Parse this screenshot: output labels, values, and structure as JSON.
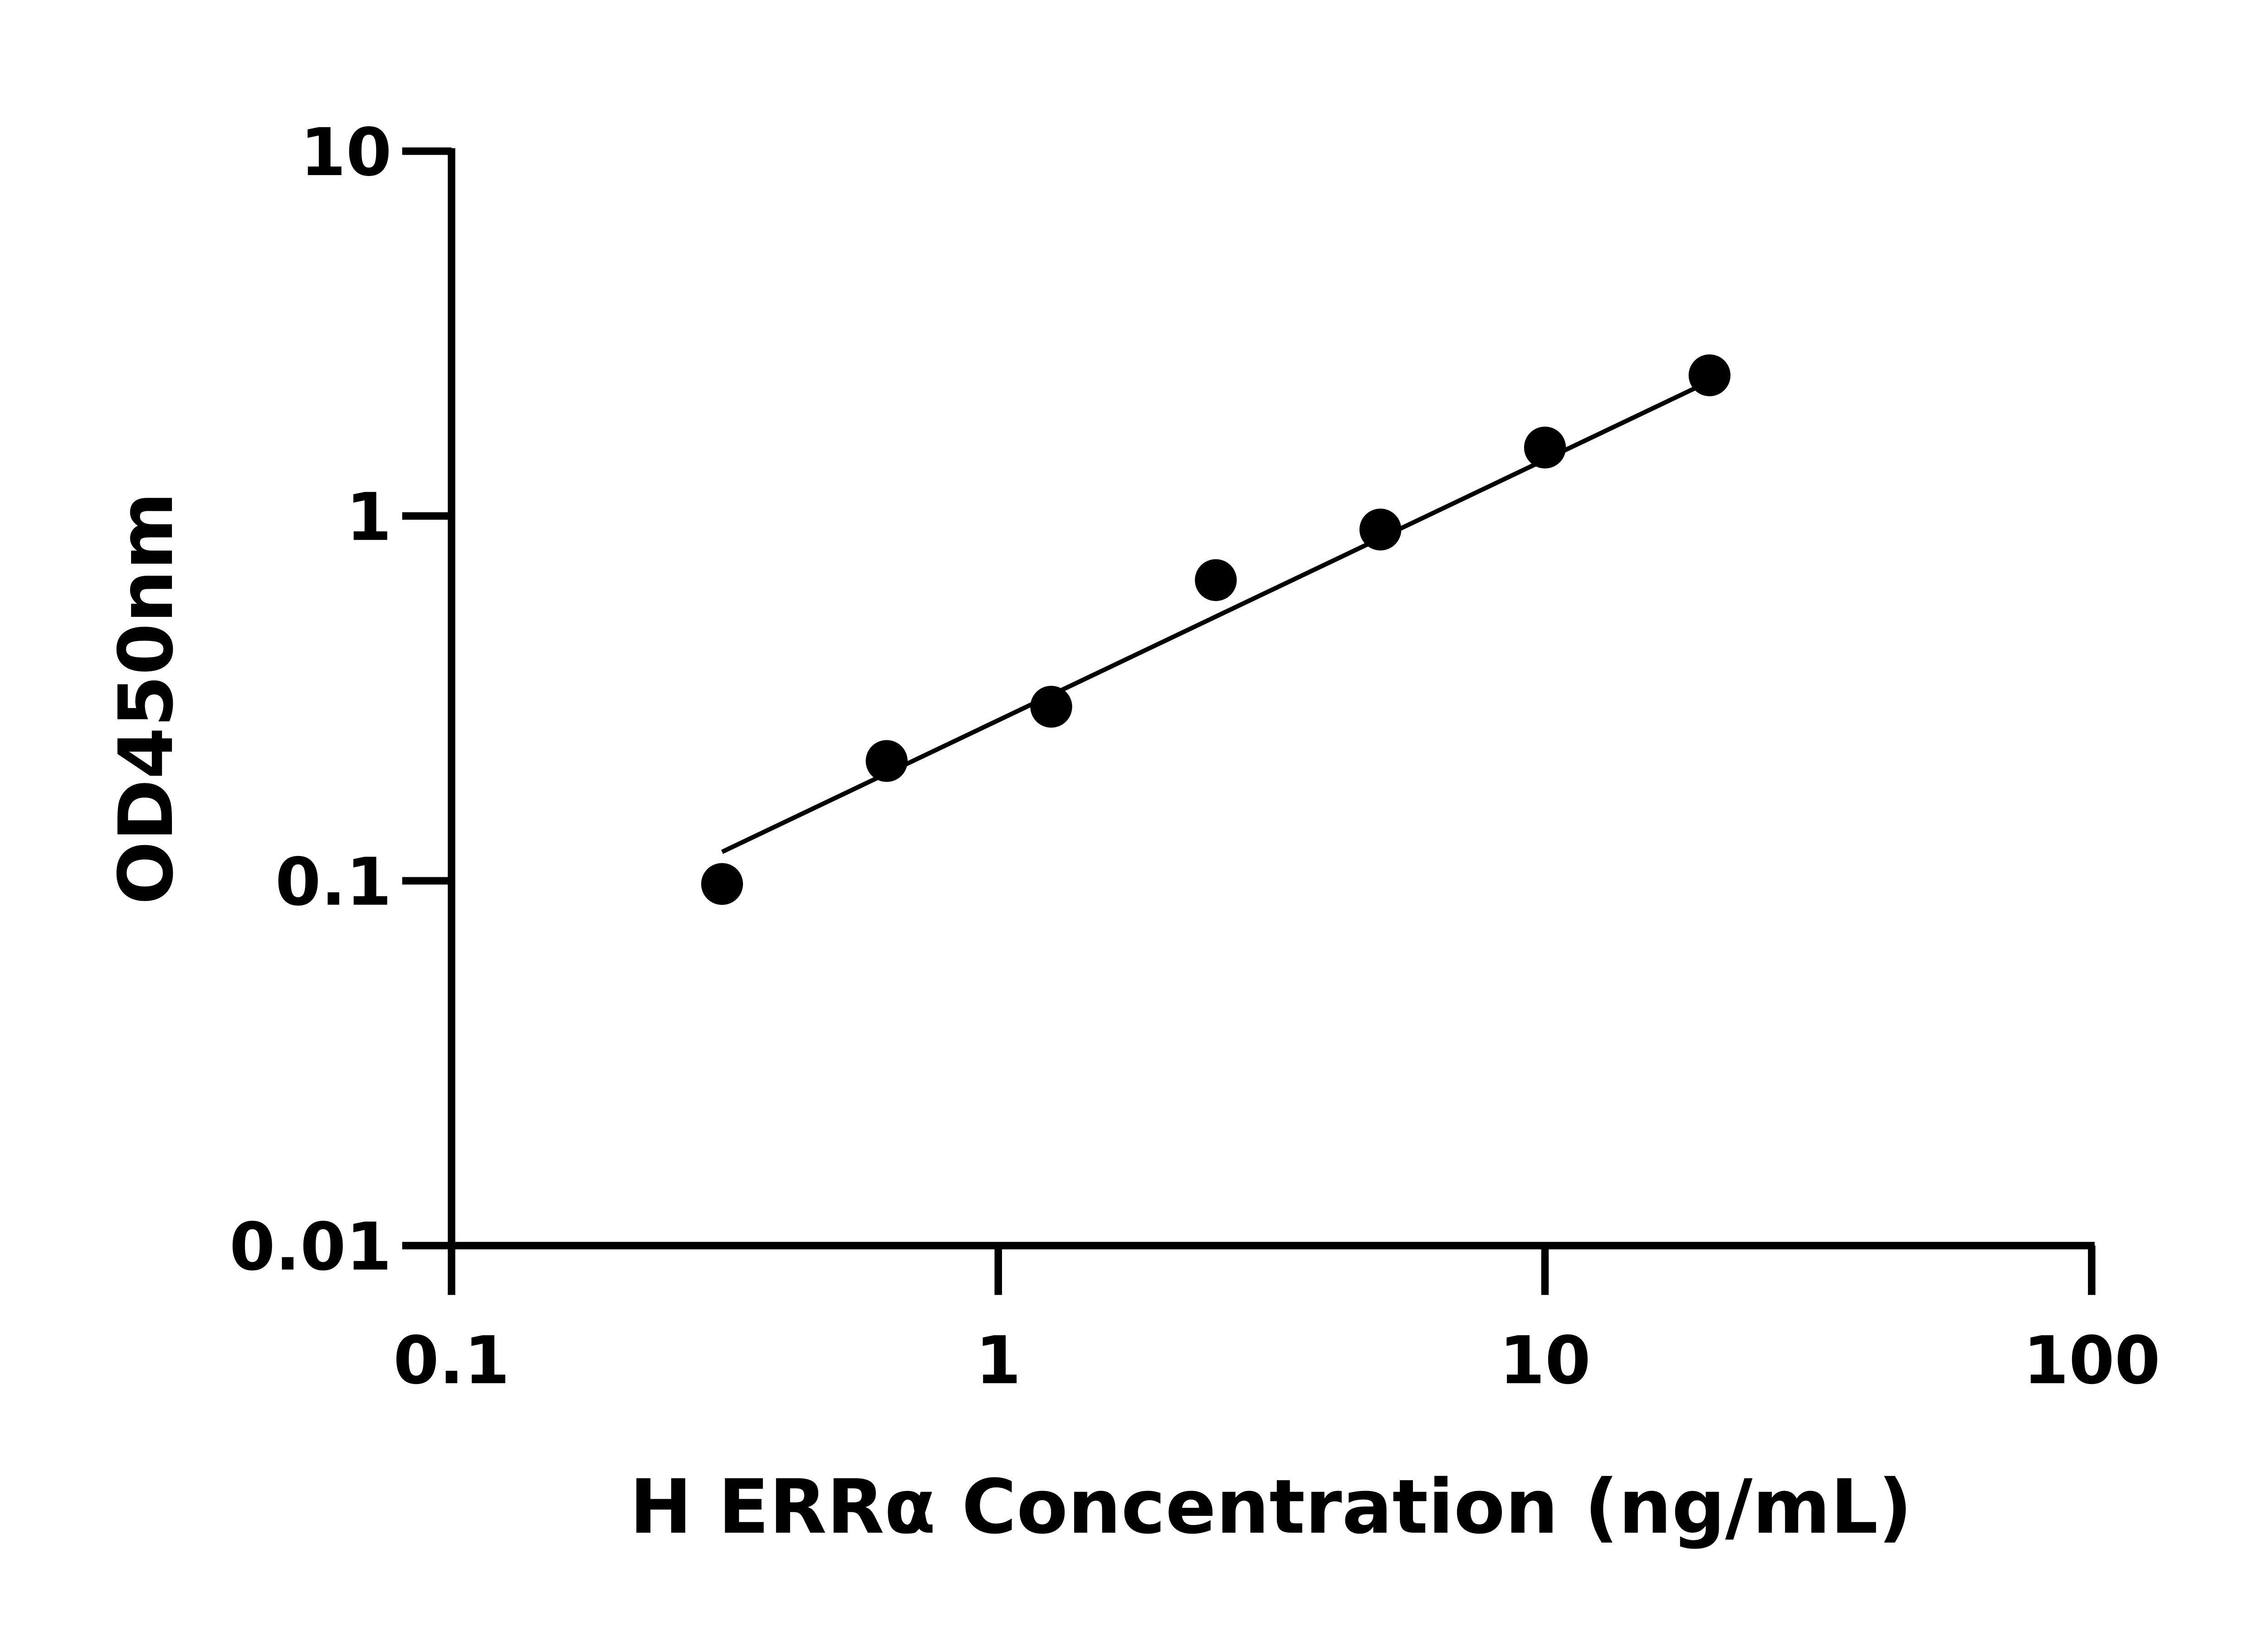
{
  "chart_data": {
    "type": "scatter",
    "title": "",
    "xlabel": "H ERRα Concentration (ng/mL)",
    "ylabel": "OD450nm",
    "xscale": "log",
    "yscale": "log",
    "xlim": [
      0.1,
      100
    ],
    "ylim": [
      0.01,
      10
    ],
    "xticks": [
      "0.1",
      "1",
      "10",
      "100"
    ],
    "yticks": [
      "0.01",
      "0.1",
      "1",
      "10"
    ],
    "grid": false,
    "marker_color": "#000000",
    "points": [
      {
        "x": 0.3125,
        "y": 0.098
      },
      {
        "x": 0.625,
        "y": 0.213
      },
      {
        "x": 1.25,
        "y": 0.3
      },
      {
        "x": 2.5,
        "y": 0.667
      },
      {
        "x": 5,
        "y": 0.918
      },
      {
        "x": 10,
        "y": 1.54
      },
      {
        "x": 20,
        "y": 2.43
      }
    ],
    "fit_line": {
      "x": [
        0.3125,
        20
      ],
      "y": [
        0.12,
        2.34
      ]
    }
  }
}
